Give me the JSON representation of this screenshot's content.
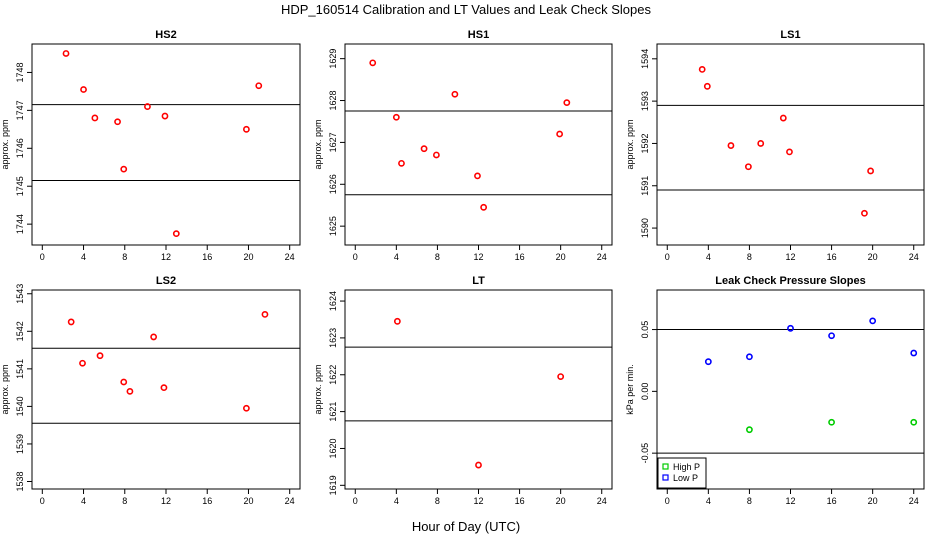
{
  "figure": {
    "title": "HDP_160514  Calibration and LT Values and Leak Check Slopes",
    "xlabel": "Hour of Day (UTC)"
  },
  "chart_data": [
    {
      "type": "scatter",
      "title": "HS2",
      "ylabel": "approx. ppm",
      "xlim": [
        -1,
        25
      ],
      "ylim": [
        1743.45,
        1748.75
      ],
      "x_ticks": [
        0,
        4,
        8,
        12,
        16,
        20,
        24
      ],
      "y_ticks": [
        1744,
        1745,
        1746,
        1747,
        1748
      ],
      "hlines": [
        1747.15,
        1745.15
      ],
      "series": [
        {
          "color": "#ff0000",
          "marker": "circle",
          "points": [
            [
              2.3,
              1748.5
            ],
            [
              4.0,
              1747.55
            ],
            [
              5.1,
              1746.8
            ],
            [
              7.3,
              1746.7
            ],
            [
              7.9,
              1745.45
            ],
            [
              10.2,
              1747.1
            ],
            [
              11.9,
              1746.85
            ],
            [
              13.0,
              1743.75
            ],
            [
              19.8,
              1746.5
            ],
            [
              21.0,
              1747.65
            ]
          ]
        }
      ]
    },
    {
      "type": "scatter",
      "title": "HS1",
      "ylabel": "approx. ppm",
      "xlim": [
        -1,
        25
      ],
      "ylim": [
        1624.55,
        1629.35
      ],
      "x_ticks": [
        0,
        4,
        8,
        12,
        16,
        20,
        24
      ],
      "y_ticks": [
        1625,
        1626,
        1627,
        1628,
        1629
      ],
      "hlines": [
        1627.75,
        1625.75
      ],
      "series": [
        {
          "color": "#ff0000",
          "marker": "circle",
          "points": [
            [
              1.7,
              1628.9
            ],
            [
              4.0,
              1627.6
            ],
            [
              4.5,
              1626.5
            ],
            [
              6.7,
              1626.85
            ],
            [
              7.9,
              1626.7
            ],
            [
              9.7,
              1628.15
            ],
            [
              11.9,
              1626.2
            ],
            [
              12.5,
              1625.45
            ],
            [
              19.9,
              1627.2
            ],
            [
              20.6,
              1627.95
            ]
          ]
        }
      ]
    },
    {
      "type": "scatter",
      "title": "LS1",
      "ylabel": "approx. ppm",
      "xlim": [
        -1,
        25
      ],
      "ylim": [
        1589.6,
        1594.35
      ],
      "x_ticks": [
        0,
        4,
        8,
        12,
        16,
        20,
        24
      ],
      "y_ticks": [
        1590,
        1591,
        1592,
        1593,
        1594
      ],
      "hlines": [
        1592.9,
        1590.9
      ],
      "series": [
        {
          "color": "#ff0000",
          "marker": "circle",
          "points": [
            [
              3.4,
              1593.75
            ],
            [
              3.9,
              1593.35
            ],
            [
              6.2,
              1591.95
            ],
            [
              7.9,
              1591.45
            ],
            [
              9.1,
              1592.0
            ],
            [
              11.3,
              1592.6
            ],
            [
              11.9,
              1591.8
            ],
            [
              19.2,
              1590.35
            ],
            [
              19.8,
              1591.35
            ]
          ]
        }
      ]
    },
    {
      "type": "scatter",
      "title": "LS2",
      "ylabel": "approx. ppm",
      "xlim": [
        -1,
        25
      ],
      "ylim": [
        1537.8,
        1543.1
      ],
      "x_ticks": [
        0,
        4,
        8,
        12,
        16,
        20,
        24
      ],
      "y_ticks": [
        1538,
        1539,
        1540,
        1541,
        1542,
        1543
      ],
      "hlines": [
        1541.55,
        1539.55
      ],
      "series": [
        {
          "color": "#ff0000",
          "marker": "circle",
          "points": [
            [
              2.8,
              1542.25
            ],
            [
              3.9,
              1541.15
            ],
            [
              5.6,
              1541.35
            ],
            [
              7.9,
              1540.65
            ],
            [
              8.5,
              1540.4
            ],
            [
              10.8,
              1541.85
            ],
            [
              11.8,
              1540.5
            ],
            [
              19.8,
              1539.95
            ],
            [
              21.6,
              1542.45
            ]
          ]
        }
      ]
    },
    {
      "type": "scatter",
      "title": "LT",
      "ylabel": "approx. ppm",
      "xlim": [
        -1,
        25
      ],
      "ylim": [
        1618.9,
        1624.3
      ],
      "x_ticks": [
        0,
        4,
        8,
        12,
        16,
        20,
        24
      ],
      "y_ticks": [
        1619,
        1620,
        1621,
        1622,
        1623,
        1624
      ],
      "hlines": [
        1622.75,
        1620.75
      ],
      "series": [
        {
          "color": "#ff0000",
          "marker": "circle",
          "points": [
            [
              4.1,
              1623.45
            ],
            [
              12.0,
              1619.55
            ],
            [
              20.0,
              1621.95
            ]
          ]
        }
      ]
    },
    {
      "type": "scatter",
      "title": "Leak Check Pressure Slopes",
      "ylabel": "kPa per min.",
      "xlim": [
        -1,
        25
      ],
      "ylim": [
        -0.079,
        0.082
      ],
      "x_ticks": [
        0,
        4,
        8,
        12,
        16,
        20,
        24
      ],
      "y_ticks": [
        -0.05,
        0.0,
        0.05
      ],
      "y_tick_labels": [
        "-0.05",
        "0.00",
        "0.05"
      ],
      "hlines": [
        0.05,
        -0.05
      ],
      "legend": {
        "position": "bottom-left"
      },
      "series": [
        {
          "name": "High P",
          "color": "#00cc00",
          "marker": "circle",
          "points": [
            [
              8,
              -0.031
            ],
            [
              16,
              -0.025
            ],
            [
              24,
              -0.025
            ]
          ]
        },
        {
          "name": "Low P",
          "color": "#0000ff",
          "marker": "circle",
          "points": [
            [
              4,
              0.024
            ],
            [
              8,
              0.028
            ],
            [
              12,
              0.051
            ],
            [
              16,
              0.045
            ],
            [
              20,
              0.057
            ],
            [
              24,
              0.031
            ]
          ]
        }
      ]
    }
  ]
}
